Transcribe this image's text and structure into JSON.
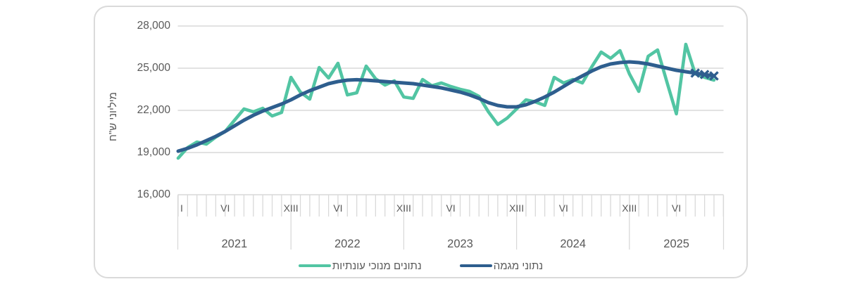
{
  "figure": {
    "y_axis_title": "מיליוני ש\"ח",
    "colors": {
      "seasonally_adjusted": "#52C5A3",
      "trend": "#2E5E8E",
      "gridline": "#D9D9D9",
      "axis_text": "#595959",
      "card_border": "#DADADA"
    },
    "legend": {
      "items": [
        {
          "id": "seasonally_adjusted",
          "label": "נתונים מנוכי עונתיות"
        },
        {
          "id": "trend",
          "label": "נתוני מגמה"
        }
      ]
    }
  },
  "chart_data": {
    "type": "line",
    "title": "",
    "ylabel": "מיליוני ש\"ח",
    "ylim": [
      16000,
      28000
    ],
    "y_ticks": [
      28000,
      25000,
      22000,
      19000,
      16000
    ],
    "y_tick_labels": [
      "28,000",
      "25,000",
      "22,000",
      "19,000",
      "16,000"
    ],
    "grid": "horizontal",
    "legend_position": "bottom",
    "x_unit": "month",
    "x_start": "2021-01",
    "x_end": "2025-10",
    "years": [
      "2021",
      "2022",
      "2023",
      "2024",
      "2025"
    ],
    "months_per_year": 12,
    "x_roman_labels": [
      {
        "label": "I",
        "month_index": 0
      },
      {
        "label": "VI",
        "month_index": 5
      },
      {
        "label": "XIII",
        "month_index": 12
      },
      {
        "label": "VI",
        "month_index": 17
      },
      {
        "label": "XIII",
        "month_index": 24
      },
      {
        "label": "VI",
        "month_index": 29
      },
      {
        "label": "XIII",
        "month_index": 36
      },
      {
        "label": "VI",
        "month_index": 41
      },
      {
        "label": "XIII",
        "month_index": 48
      },
      {
        "label": "VI",
        "month_index": 53
      }
    ],
    "series": [
      {
        "id": "seasonally_adjusted",
        "name": "נתונים מנוכי עונתיות",
        "values": [
          18600,
          19350,
          19750,
          19600,
          20100,
          20500,
          21300,
          22100,
          21900,
          22150,
          21600,
          21850,
          24350,
          23300,
          22800,
          25050,
          24300,
          25350,
          23100,
          23250,
          25150,
          24250,
          23800,
          24100,
          22950,
          22850,
          24200,
          23750,
          23950,
          23700,
          23500,
          23350,
          23000,
          21900,
          21000,
          21450,
          22100,
          22750,
          22600,
          22350,
          24350,
          23950,
          24200,
          23950,
          25100,
          26150,
          25700,
          26250,
          24600,
          23350,
          25850,
          26300,
          24000,
          21750,
          26700,
          24600,
          24350,
          24150
        ]
      },
      {
        "id": "trend",
        "name": "נתוני מגמה",
        "marker_last_n": 3,
        "marker": "x",
        "values": [
          19100,
          19300,
          19550,
          19850,
          20150,
          20500,
          20900,
          21300,
          21650,
          21950,
          22200,
          22450,
          22750,
          23100,
          23400,
          23650,
          23900,
          24050,
          24150,
          24180,
          24150,
          24100,
          24050,
          24000,
          23950,
          23900,
          23800,
          23700,
          23600,
          23450,
          23300,
          23100,
          22850,
          22550,
          22350,
          22250,
          22250,
          22400,
          22650,
          22950,
          23300,
          23700,
          24100,
          24450,
          24800,
          25100,
          25300,
          25400,
          25450,
          25400,
          25300,
          25150,
          25000,
          24850,
          24750,
          24650,
          24550,
          24450
        ]
      }
    ]
  }
}
